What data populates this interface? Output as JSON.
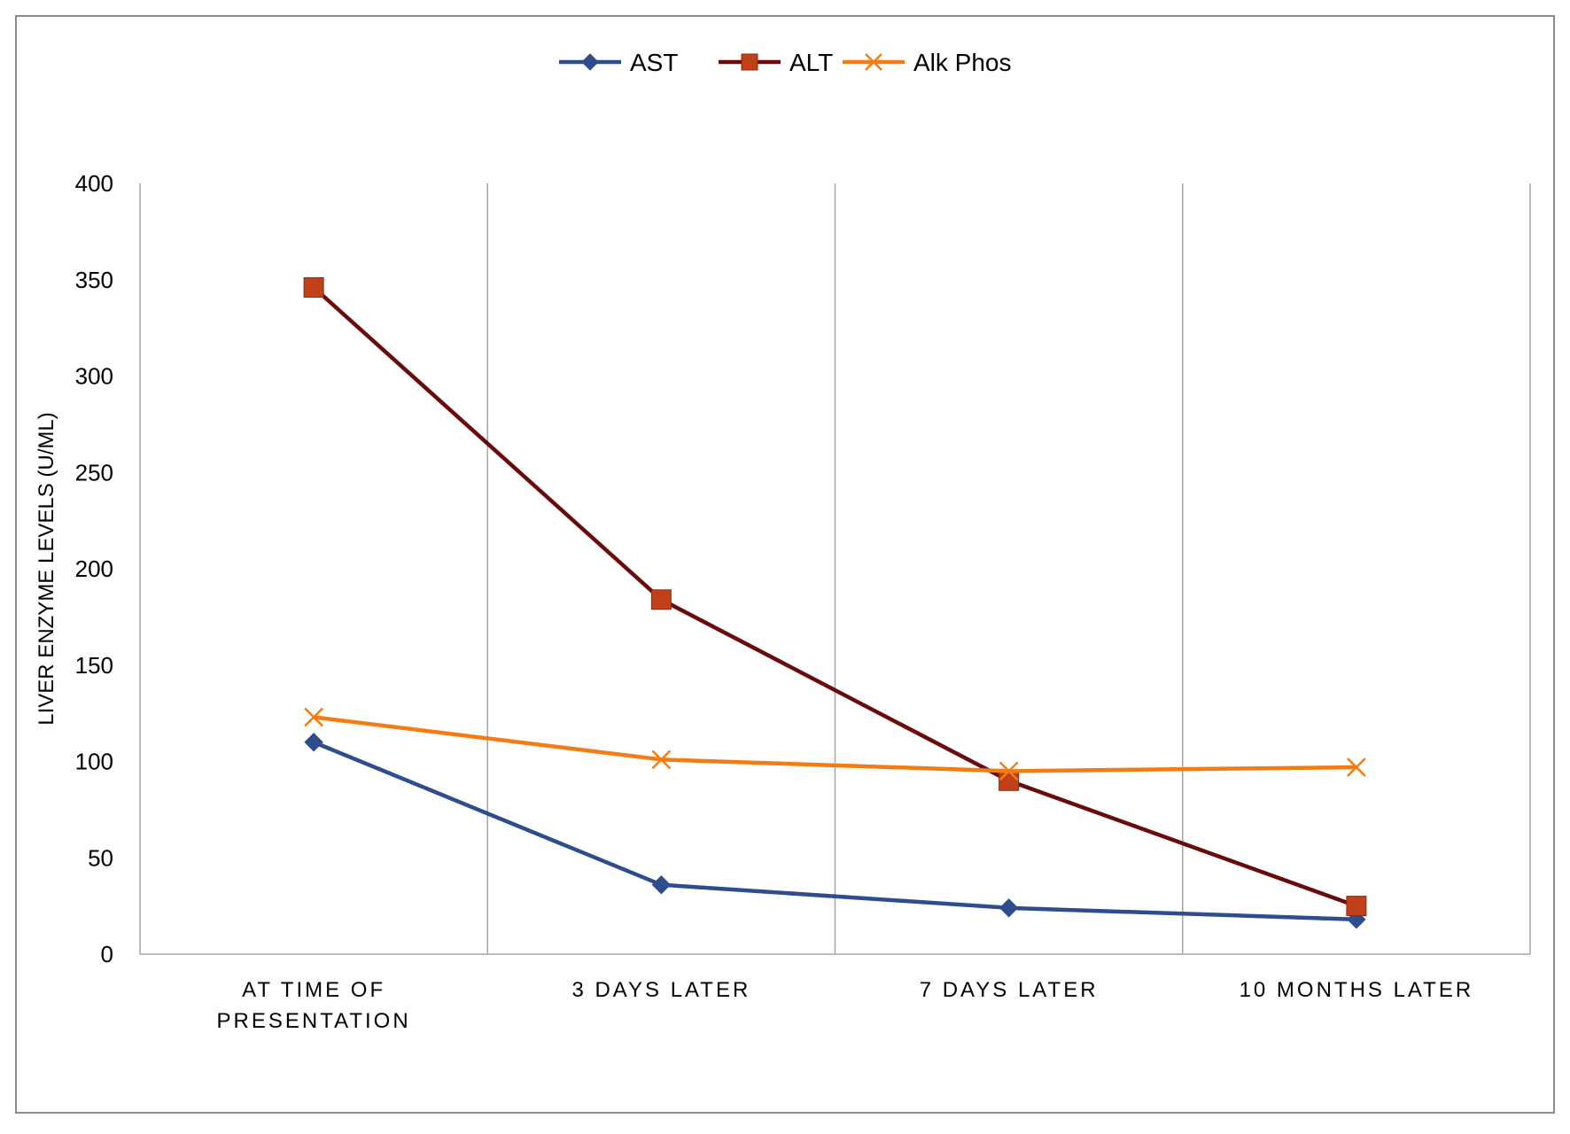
{
  "chart_data": {
    "type": "line",
    "title": "",
    "xlabel": "",
    "ylabel": "LIVER ENZYME LEVELS (U/ML)",
    "ylim": [
      0,
      400
    ],
    "yticks": [
      "0",
      "50",
      "100",
      "150",
      "200",
      "250",
      "300",
      "350",
      "400"
    ],
    "categories": [
      [
        "AT TIME OF",
        "PRESENTATION"
      ],
      [
        "3 DAYS LATER"
      ],
      [
        "7 DAYS LATER"
      ],
      [
        "10 MONTHS LATER"
      ]
    ],
    "grid": "vertical lines between categories",
    "legend_position": "top-center",
    "series": [
      {
        "name": "AST",
        "values": [
          110,
          36,
          24,
          18
        ],
        "color": "#2E4D8F",
        "marker": "diamond"
      },
      {
        "name": "ALT",
        "values": [
          346,
          184,
          90,
          25
        ],
        "color": "#6B0A0A",
        "marker_color": "#C0401A",
        "marker": "square"
      },
      {
        "name": "Alk Phos",
        "values": [
          123,
          101,
          95,
          97
        ],
        "color": "#F57C12",
        "marker": "x"
      }
    ]
  }
}
